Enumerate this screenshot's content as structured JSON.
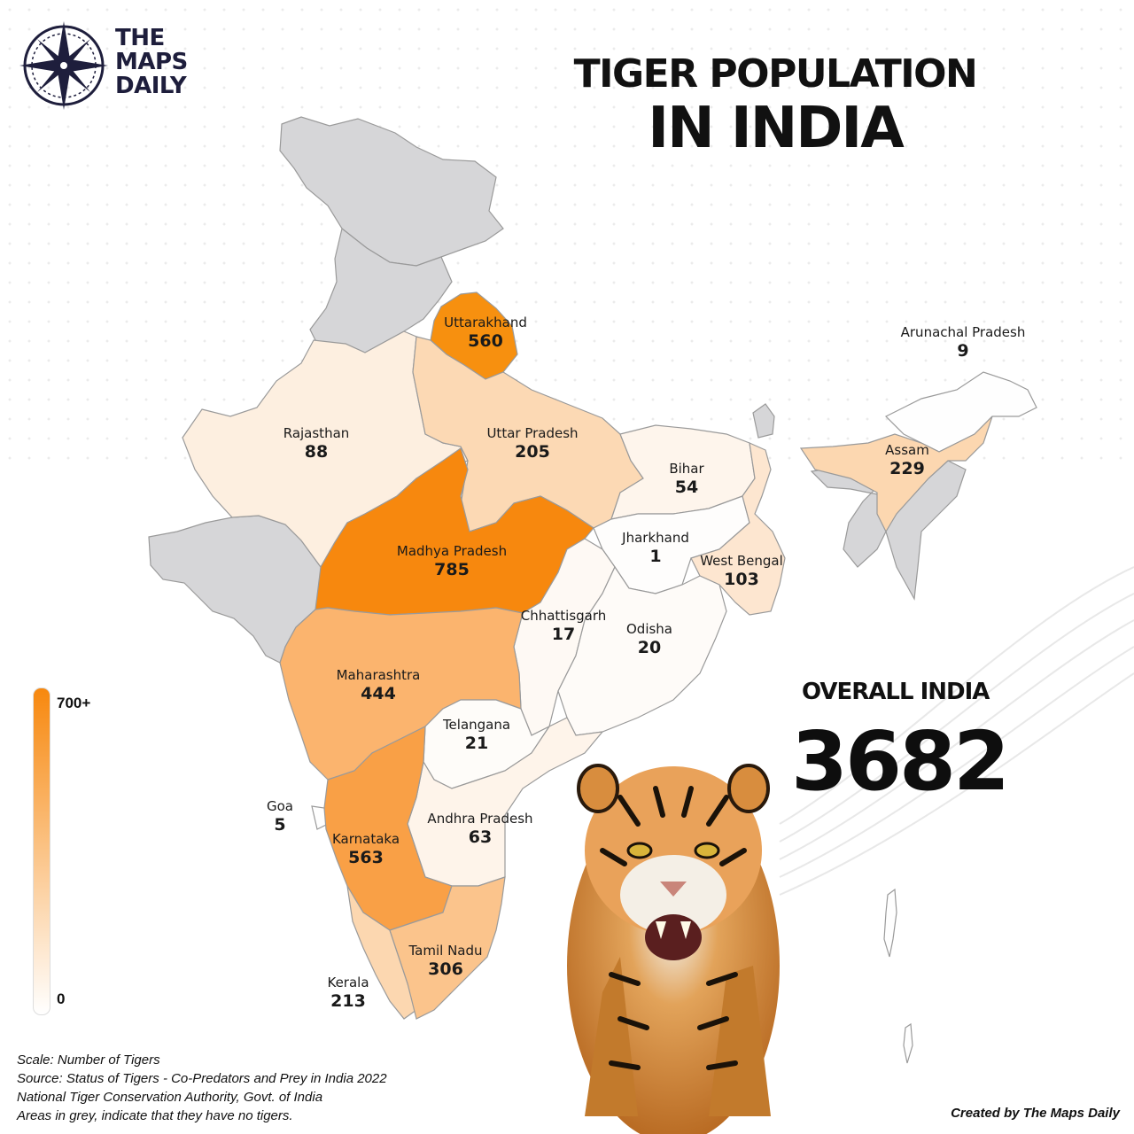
{
  "brand": {
    "line1": "THE",
    "line2": "MAPS",
    "line3": "DAILY",
    "icon": "compass-rose-icon"
  },
  "title": {
    "line1": "TIGER POPULATION",
    "line2": "IN INDIA"
  },
  "overall": {
    "label": "OVERALL INDIA",
    "value": "3682"
  },
  "legend": {
    "max_label": "700+",
    "min_label": "0",
    "color_high": "#f7880e",
    "color_low": "#ffffff"
  },
  "colors": {
    "no_tigers": "#d6d6d8",
    "border": "#9a9a9a"
  },
  "states": [
    {
      "name": "Madhya Pradesh",
      "value": "785"
    },
    {
      "name": "Karnataka",
      "value": "563"
    },
    {
      "name": "Uttarakhand",
      "value": "560"
    },
    {
      "name": "Maharashtra",
      "value": "444"
    },
    {
      "name": "Tamil Nadu",
      "value": "306"
    },
    {
      "name": "Assam",
      "value": "229"
    },
    {
      "name": "Kerala",
      "value": "213"
    },
    {
      "name": "Uttar Pradesh",
      "value": "205"
    },
    {
      "name": "West Bengal",
      "value": "103"
    },
    {
      "name": "Rajasthan",
      "value": "88"
    },
    {
      "name": "Andhra Pradesh",
      "value": "63"
    },
    {
      "name": "Bihar",
      "value": "54"
    },
    {
      "name": "Telangana",
      "value": "21"
    },
    {
      "name": "Odisha",
      "value": "20"
    },
    {
      "name": "Chhattisgarh",
      "value": "17"
    },
    {
      "name": "Arunachal Pradesh",
      "value": "9"
    },
    {
      "name": "Goa",
      "value": "5"
    },
    {
      "name": "Jharkhand",
      "value": "1"
    }
  ],
  "footer": {
    "scale": "Scale: Number of Tigers",
    "source1": "Source: Status of Tigers - Co-Predators and Prey in India 2022",
    "source2": "National Tiger Conservation Authority, Govt. of India",
    "note": "Areas in grey, indicate that they have no tigers."
  },
  "credit": "Created by The Maps Daily"
}
